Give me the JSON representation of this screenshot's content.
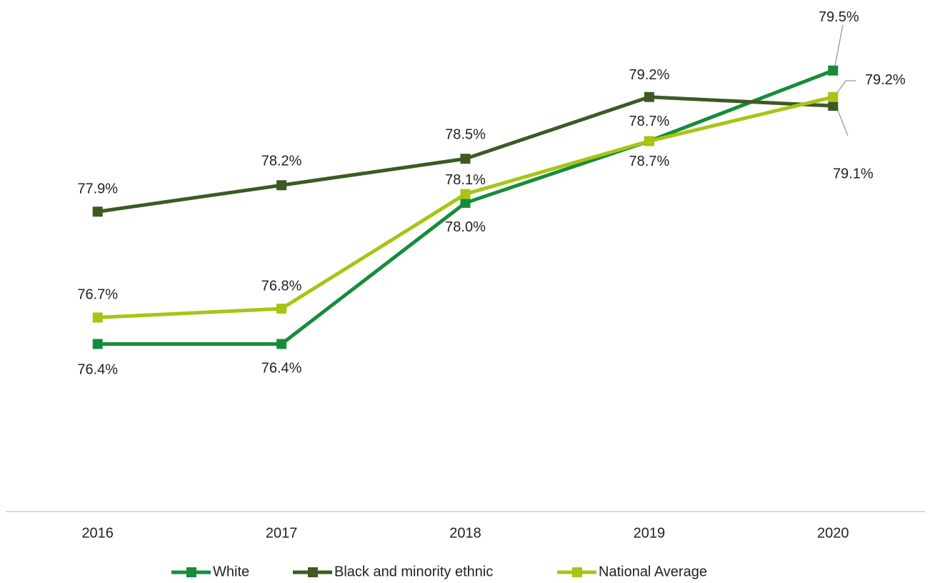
{
  "chart_data": {
    "type": "line",
    "categories": [
      "2016",
      "2017",
      "2018",
      "2019",
      "2020"
    ],
    "series": [
      {
        "name": "White",
        "color": "#168c3a",
        "values": [
          76.4,
          76.4,
          78.0,
          78.7,
          79.5
        ],
        "value_labels": [
          "76.4%",
          "76.4%",
          "78.0%",
          "78.7%",
          "79.5%"
        ]
      },
      {
        "name": "Black and minority ethnic",
        "color": "#3d5a23",
        "values": [
          77.9,
          78.2,
          78.5,
          79.2,
          79.1
        ],
        "value_labels": [
          "77.9%",
          "78.2%",
          "78.5%",
          "79.2%",
          "79.1%"
        ]
      },
      {
        "name": "National Average",
        "color": "#a8c414",
        "values": [
          76.7,
          76.8,
          78.1,
          78.7,
          79.2
        ],
        "value_labels": [
          "76.7%",
          "76.8%",
          "78.1%",
          "78.7%",
          "79.2%"
        ]
      }
    ],
    "ylim": [
      74.5,
      80.3
    ],
    "grid": false,
    "legend": "bottom"
  }
}
